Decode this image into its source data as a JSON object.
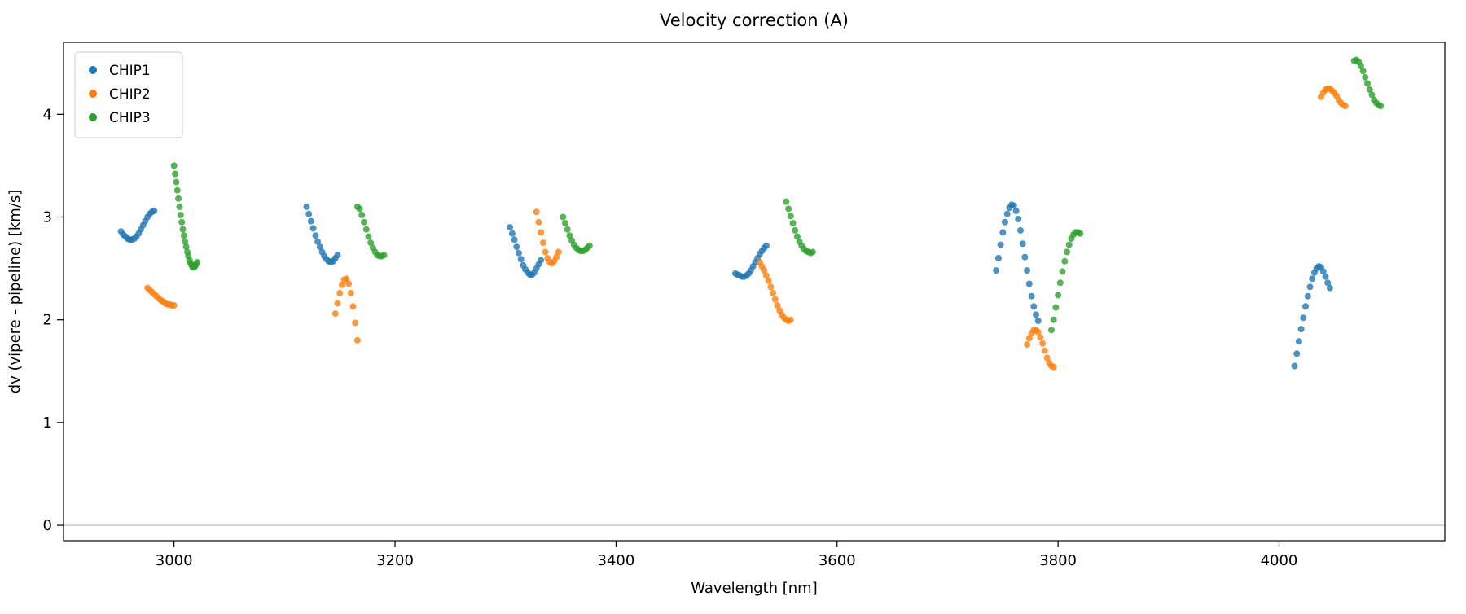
{
  "chart_data": {
    "type": "scatter",
    "title": "Velocity correction (A)",
    "xlabel": "Wavelength [nm]",
    "ylabel": "dv (vipere - pipeline) [km/s]",
    "xlim": [
      2900,
      4150
    ],
    "ylim": [
      -0.15,
      4.7
    ],
    "xticks": [
      3000,
      3200,
      3400,
      3600,
      3800,
      4000
    ],
    "yticks": [
      0,
      1,
      2,
      3,
      4
    ],
    "hline_y": 0,
    "hline_color": "#b0b0b0",
    "grid": false,
    "legend_position": "upper left",
    "marker": {
      "radius": 4,
      "opacity": 0.8
    },
    "series": [
      {
        "name": "CHIP1",
        "color": "#1f77b4",
        "segments": [
          [
            [
              2952,
              2.86
            ],
            [
              2954,
              2.83
            ],
            [
              2956,
              2.81
            ],
            [
              2958,
              2.79
            ],
            [
              2960,
              2.78
            ],
            [
              2962,
              2.78
            ],
            [
              2964,
              2.79
            ],
            [
              2966,
              2.81
            ],
            [
              2968,
              2.84
            ],
            [
              2970,
              2.88
            ],
            [
              2972,
              2.92
            ],
            [
              2974,
              2.96
            ],
            [
              2976,
              3.0
            ],
            [
              2978,
              3.03
            ],
            [
              2980,
              3.05
            ],
            [
              2982,
              3.06
            ]
          ],
          [
            [
              3120,
              3.1
            ],
            [
              3122,
              3.03
            ],
            [
              3124,
              2.96
            ],
            [
              3126,
              2.89
            ],
            [
              3128,
              2.82
            ],
            [
              3130,
              2.76
            ],
            [
              3132,
              2.71
            ],
            [
              3134,
              2.66
            ],
            [
              3136,
              2.62
            ],
            [
              3138,
              2.59
            ],
            [
              3140,
              2.57
            ],
            [
              3142,
              2.56
            ],
            [
              3144,
              2.57
            ],
            [
              3146,
              2.6
            ],
            [
              3148,
              2.63
            ]
          ],
          [
            [
              3304,
              2.9
            ],
            [
              3306,
              2.84
            ],
            [
              3308,
              2.78
            ],
            [
              3310,
              2.71
            ],
            [
              3312,
              2.65
            ],
            [
              3314,
              2.59
            ],
            [
              3316,
              2.53
            ],
            [
              3318,
              2.49
            ],
            [
              3320,
              2.46
            ],
            [
              3322,
              2.44
            ],
            [
              3324,
              2.44
            ],
            [
              3326,
              2.46
            ],
            [
              3328,
              2.5
            ],
            [
              3330,
              2.54
            ],
            [
              3332,
              2.58
            ]
          ],
          [
            [
              3508,
              2.45
            ],
            [
              3510,
              2.44
            ],
            [
              3512,
              2.43
            ],
            [
              3514,
              2.42
            ],
            [
              3516,
              2.42
            ],
            [
              3518,
              2.43
            ],
            [
              3520,
              2.45
            ],
            [
              3522,
              2.48
            ],
            [
              3524,
              2.52
            ],
            [
              3526,
              2.56
            ],
            [
              3528,
              2.6
            ],
            [
              3530,
              2.64
            ],
            [
              3532,
              2.67
            ],
            [
              3534,
              2.7
            ],
            [
              3536,
              2.72
            ]
          ],
          [
            [
              3744,
              2.48
            ],
            [
              3746,
              2.6
            ],
            [
              3748,
              2.73
            ],
            [
              3750,
              2.85
            ],
            [
              3752,
              2.95
            ],
            [
              3754,
              3.03
            ],
            [
              3756,
              3.09
            ],
            [
              3758,
              3.12
            ],
            [
              3760,
              3.11
            ],
            [
              3762,
              3.06
            ],
            [
              3764,
              2.98
            ],
            [
              3766,
              2.87
            ],
            [
              3768,
              2.74
            ],
            [
              3770,
              2.61
            ],
            [
              3772,
              2.48
            ],
            [
              3774,
              2.35
            ],
            [
              3776,
              2.23
            ],
            [
              3778,
              2.13
            ],
            [
              3780,
              2.05
            ],
            [
              3782,
              1.99
            ]
          ],
          [
            [
              4014,
              1.55
            ],
            [
              4016,
              1.67
            ],
            [
              4018,
              1.79
            ],
            [
              4020,
              1.91
            ],
            [
              4022,
              2.02
            ],
            [
              4024,
              2.13
            ],
            [
              4026,
              2.23
            ],
            [
              4028,
              2.32
            ],
            [
              4030,
              2.4
            ],
            [
              4032,
              2.46
            ],
            [
              4034,
              2.5
            ],
            [
              4036,
              2.52
            ],
            [
              4038,
              2.51
            ],
            [
              4040,
              2.47
            ],
            [
              4042,
              2.42
            ],
            [
              4044,
              2.36
            ],
            [
              4046,
              2.31
            ]
          ]
        ]
      },
      {
        "name": "CHIP2",
        "color": "#ff7f0e",
        "segments": [
          [
            [
              2976,
              2.31
            ],
            [
              2978,
              2.29
            ],
            [
              2980,
              2.27
            ],
            [
              2982,
              2.25
            ],
            [
              2984,
              2.23
            ],
            [
              2986,
              2.21
            ],
            [
              2988,
              2.19
            ],
            [
              2990,
              2.18
            ],
            [
              2992,
              2.16
            ],
            [
              2994,
              2.15
            ],
            [
              2996,
              2.15
            ],
            [
              2998,
              2.14
            ],
            [
              3000,
              2.14
            ]
          ],
          [
            [
              3146,
              2.06
            ],
            [
              3148,
              2.16
            ],
            [
              3150,
              2.26
            ],
            [
              3152,
              2.34
            ],
            [
              3154,
              2.39
            ],
            [
              3156,
              2.4
            ],
            [
              3158,
              2.35
            ],
            [
              3160,
              2.26
            ],
            [
              3162,
              2.13
            ],
            [
              3164,
              1.97
            ],
            [
              3166,
              1.8
            ]
          ],
          [
            [
              3328,
              3.05
            ],
            [
              3330,
              2.95
            ],
            [
              3332,
              2.85
            ],
            [
              3334,
              2.75
            ],
            [
              3336,
              2.66
            ],
            [
              3338,
              2.6
            ],
            [
              3340,
              2.56
            ],
            [
              3342,
              2.55
            ],
            [
              3344,
              2.57
            ],
            [
              3346,
              2.61
            ],
            [
              3348,
              2.66
            ]
          ],
          [
            [
              3530,
              2.56
            ],
            [
              3532,
              2.52
            ],
            [
              3534,
              2.48
            ],
            [
              3536,
              2.43
            ],
            [
              3538,
              2.38
            ],
            [
              3540,
              2.32
            ],
            [
              3542,
              2.26
            ],
            [
              3544,
              2.2
            ],
            [
              3546,
              2.14
            ],
            [
              3548,
              2.09
            ],
            [
              3550,
              2.05
            ],
            [
              3552,
              2.02
            ],
            [
              3554,
              2.0
            ],
            [
              3556,
              1.99
            ],
            [
              3558,
              2.0
            ]
          ],
          [
            [
              3772,
              1.76
            ],
            [
              3774,
              1.82
            ],
            [
              3776,
              1.87
            ],
            [
              3778,
              1.9
            ],
            [
              3780,
              1.9
            ],
            [
              3782,
              1.88
            ],
            [
              3784,
              1.83
            ],
            [
              3786,
              1.77
            ],
            [
              3788,
              1.7
            ],
            [
              3790,
              1.63
            ],
            [
              3792,
              1.58
            ],
            [
              3794,
              1.55
            ],
            [
              3796,
              1.54
            ]
          ],
          [
            [
              4038,
              4.17
            ],
            [
              4040,
              4.21
            ],
            [
              4042,
              4.24
            ],
            [
              4044,
              4.25
            ],
            [
              4046,
              4.25
            ],
            [
              4048,
              4.23
            ],
            [
              4050,
              4.21
            ],
            [
              4052,
              4.18
            ],
            [
              4054,
              4.14
            ],
            [
              4056,
              4.11
            ],
            [
              4058,
              4.09
            ],
            [
              4060,
              4.08
            ]
          ]
        ]
      },
      {
        "name": "CHIP3",
        "color": "#2ca02c",
        "segments": [
          [
            [
              3000,
              3.5
            ],
            [
              3001,
              3.42
            ],
            [
              3002,
              3.34
            ],
            [
              3003,
              3.26
            ],
            [
              3004,
              3.18
            ],
            [
              3005,
              3.1
            ],
            [
              3006,
              3.02
            ],
            [
              3007,
              2.95
            ],
            [
              3008,
              2.88
            ],
            [
              3009,
              2.82
            ],
            [
              3010,
              2.76
            ],
            [
              3011,
              2.71
            ],
            [
              3012,
              2.66
            ],
            [
              3013,
              2.62
            ],
            [
              3014,
              2.58
            ],
            [
              3015,
              2.55
            ],
            [
              3016,
              2.53
            ],
            [
              3017,
              2.51
            ],
            [
              3018,
              2.51
            ],
            [
              3019,
              2.52
            ],
            [
              3020,
              2.54
            ],
            [
              3021,
              2.56
            ]
          ],
          [
            [
              3166,
              3.1
            ],
            [
              3168,
              3.08
            ],
            [
              3170,
              3.02
            ],
            [
              3172,
              2.95
            ],
            [
              3174,
              2.88
            ],
            [
              3176,
              2.81
            ],
            [
              3178,
              2.75
            ],
            [
              3180,
              2.7
            ],
            [
              3182,
              2.66
            ],
            [
              3184,
              2.63
            ],
            [
              3186,
              2.62
            ],
            [
              3188,
              2.62
            ],
            [
              3190,
              2.63
            ]
          ],
          [
            [
              3352,
              3.0
            ],
            [
              3354,
              2.94
            ],
            [
              3356,
              2.88
            ],
            [
              3358,
              2.82
            ],
            [
              3360,
              2.77
            ],
            [
              3362,
              2.73
            ],
            [
              3364,
              2.7
            ],
            [
              3366,
              2.68
            ],
            [
              3368,
              2.67
            ],
            [
              3370,
              2.67
            ],
            [
              3372,
              2.68
            ],
            [
              3374,
              2.7
            ],
            [
              3376,
              2.72
            ]
          ],
          [
            [
              3554,
              3.15
            ],
            [
              3556,
              3.08
            ],
            [
              3558,
              3.01
            ],
            [
              3560,
              2.94
            ],
            [
              3562,
              2.87
            ],
            [
              3564,
              2.81
            ],
            [
              3566,
              2.76
            ],
            [
              3568,
              2.72
            ],
            [
              3570,
              2.69
            ],
            [
              3572,
              2.67
            ],
            [
              3574,
              2.66
            ],
            [
              3576,
              2.65
            ],
            [
              3578,
              2.66
            ]
          ],
          [
            [
              3794,
              1.9
            ],
            [
              3796,
              2.0
            ],
            [
              3798,
              2.12
            ],
            [
              3800,
              2.24
            ],
            [
              3802,
              2.36
            ],
            [
              3804,
              2.47
            ],
            [
              3806,
              2.57
            ],
            [
              3808,
              2.66
            ],
            [
              3810,
              2.73
            ],
            [
              3812,
              2.79
            ],
            [
              3814,
              2.83
            ],
            [
              3816,
              2.85
            ],
            [
              3818,
              2.85
            ],
            [
              3820,
              2.84
            ]
          ],
          [
            [
              4068,
              4.52
            ],
            [
              4070,
              4.53
            ],
            [
              4072,
              4.51
            ],
            [
              4074,
              4.47
            ],
            [
              4076,
              4.42
            ],
            [
              4078,
              4.36
            ],
            [
              4080,
              4.3
            ],
            [
              4082,
              4.24
            ],
            [
              4084,
              4.19
            ],
            [
              4086,
              4.14
            ],
            [
              4088,
              4.11
            ],
            [
              4090,
              4.09
            ],
            [
              4092,
              4.08
            ]
          ]
        ]
      }
    ]
  }
}
